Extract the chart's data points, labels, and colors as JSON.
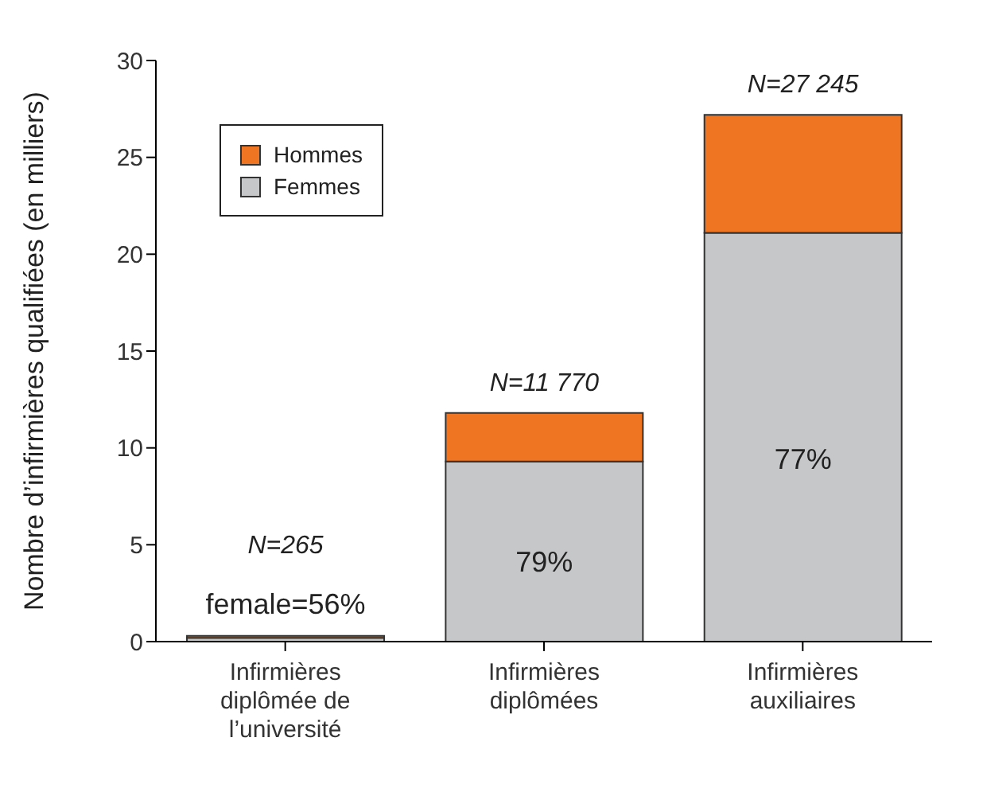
{
  "chart_data": {
    "type": "bar",
    "stacked": true,
    "ylabel": "Nombre d’infirmières qualifiées (en milliers)",
    "categories": [
      "Infirmières diplômée de l’université",
      "Infirmières diplômées",
      "Infirmières auxiliaires"
    ],
    "series": [
      {
        "name": "Femmes",
        "color": "#c6c7c9",
        "values": [
          0.2,
          9.3,
          21.1
        ]
      },
      {
        "name": "Hommes",
        "color": "#f07522",
        "values": [
          0.1,
          2.5,
          6.1
        ]
      }
    ],
    "annotations": [
      "female=56%",
      "79%",
      "77%",
      "N=265",
      "N=11 770",
      "N=27 245"
    ],
    "ylim": [
      0,
      30
    ],
    "yticks": [
      0,
      5,
      10,
      15,
      20,
      25,
      30
    ],
    "grid": false,
    "legend": "top left"
  }
}
